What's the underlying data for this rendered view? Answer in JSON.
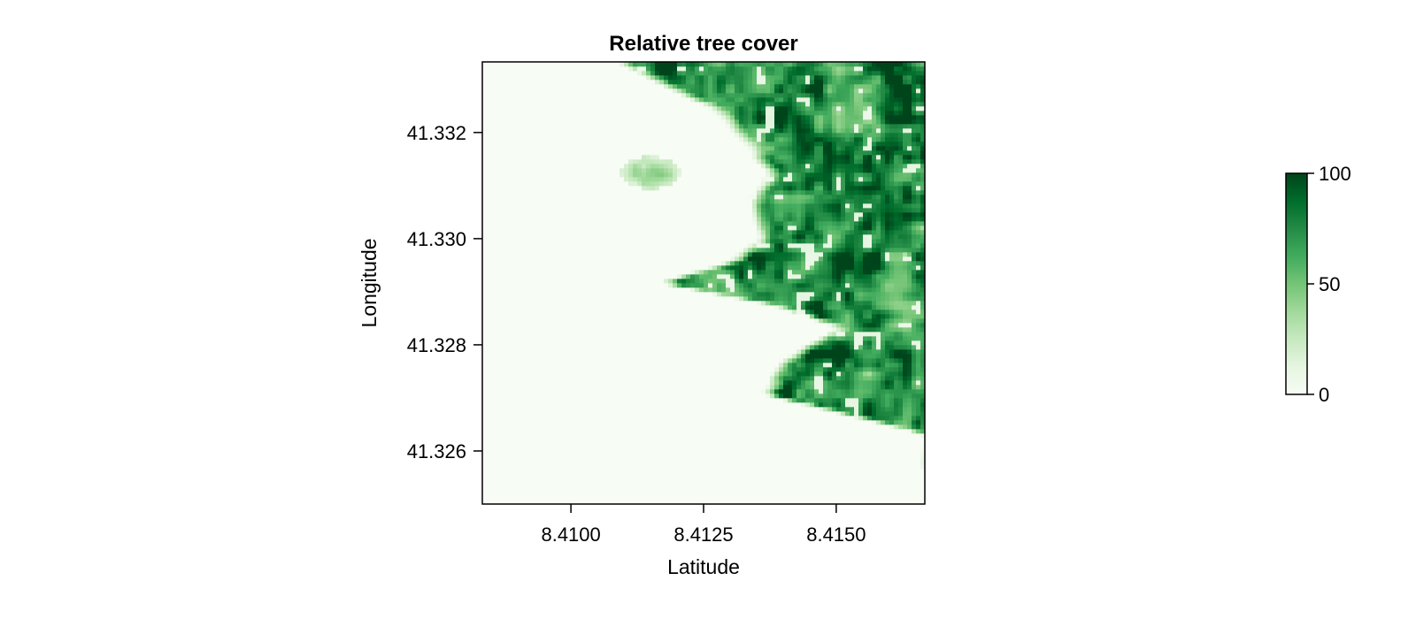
{
  "chart_data": {
    "type": "heatmap",
    "title": "Relative tree cover",
    "xlabel": "Latitude",
    "ylabel": "Longitude",
    "xlim": [
      8.40833,
      8.41667
    ],
    "ylim": [
      41.325,
      41.33333
    ],
    "x_ticks": [
      {
        "value": 8.41,
        "label": "8.4100"
      },
      {
        "value": 8.4125,
        "label": "8.4125"
      },
      {
        "value": 8.415,
        "label": "8.4150"
      }
    ],
    "y_ticks": [
      {
        "value": 41.326,
        "label": "41.326"
      },
      {
        "value": 41.328,
        "label": "41.328"
      },
      {
        "value": 41.33,
        "label": "41.330"
      },
      {
        "value": 41.332,
        "label": "41.332"
      }
    ],
    "colorbar": {
      "min": 0,
      "max": 100,
      "ticks": [
        {
          "value": 0,
          "label": "0"
        },
        {
          "value": 50,
          "label": "50"
        },
        {
          "value": 100,
          "label": "100"
        }
      ],
      "colormap": "Greens",
      "colors": [
        "#f7fcf5",
        "#e5f5e0",
        "#c7e9c0",
        "#a1d99b",
        "#74c476",
        "#41ab5d",
        "#238b45",
        "#006d2c",
        "#00441b"
      ]
    },
    "grid": false,
    "grid_size": [
      100,
      100
    ],
    "field": {
      "description_shape": "tree cover high toward east, bare (0) toward west; boundary irregular",
      "boundary_profile": [
        {
          "lat": 41.33333,
          "lon": 8.41083
        },
        {
          "lat": 41.3325,
          "lon": 8.4125
        },
        {
          "lat": 41.33167,
          "lon": 8.41333
        },
        {
          "lat": 41.33125,
          "lon": 8.41375
        },
        {
          "lat": 41.33083,
          "lon": 8.41333
        },
        {
          "lat": 41.33,
          "lon": 8.4135
        },
        {
          "lat": 41.32958,
          "lon": 8.41292
        },
        {
          "lat": 41.32917,
          "lon": 8.41167
        },
        {
          "lat": 41.32875,
          "lon": 8.41375
        },
        {
          "lat": 41.32833,
          "lon": 8.415
        },
        {
          "lat": 41.32792,
          "lon": 8.41417
        },
        {
          "lat": 41.32708,
          "lon": 8.4135
        },
        {
          "lat": 41.32667,
          "lon": 8.41517
        },
        {
          "lat": 41.32625,
          "lon": 8.41667
        },
        {
          "lat": 41.325,
          "lon": 8.41667
        }
      ],
      "patches": [
        {
          "lat": 41.33125,
          "lon": 8.4115,
          "radius": 0.00055,
          "value": 60
        },
        {
          "lat": 41.33,
          "lon": 8.41625,
          "radius": 0.0006,
          "value": 95
        },
        {
          "lat": 41.32767,
          "lon": 8.4155,
          "radius": 0.0005,
          "value": 85
        }
      ]
    }
  }
}
